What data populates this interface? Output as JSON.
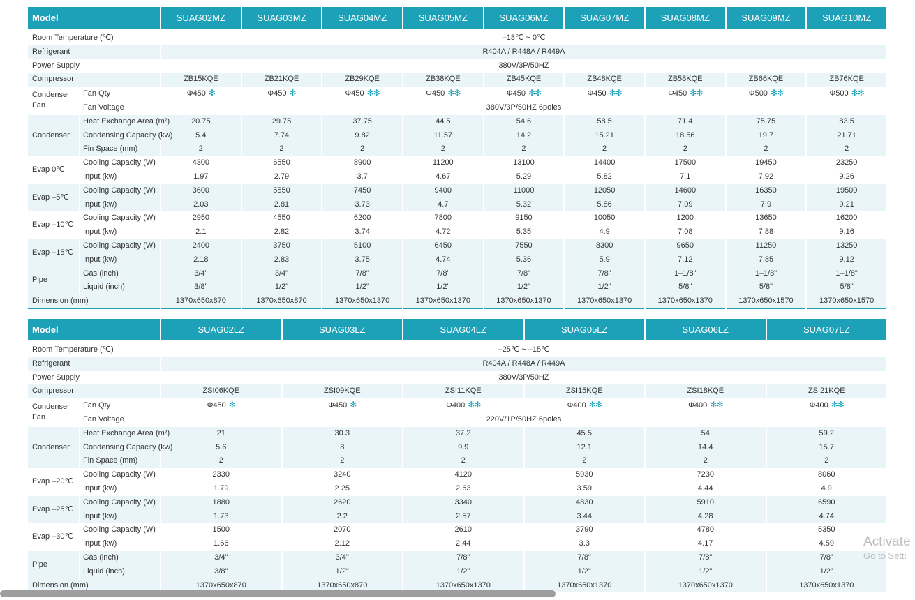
{
  "table1": {
    "model_label": "Model",
    "models": [
      "SUAG02MZ",
      "SUAG03MZ",
      "SUAG04MZ",
      "SUAG05MZ",
      "SUAG06MZ",
      "SUAG07MZ",
      "SUAG08MZ",
      "SUAG09MZ",
      "SUAG10MZ"
    ],
    "room_temp_label": "Room Temperature (℃)",
    "room_temp": "–18℃ ~ 0℃",
    "refrigerant_label": "Refrigerant",
    "refrigerant": "R404A / R448A / R449A",
    "power_label": "Power Supply",
    "power": "380V/3P/50HZ",
    "compressor_label": "Compressor",
    "compressors": [
      "ZB15KQE",
      "ZB21KQE",
      "ZB29KQE",
      "ZB38KQE",
      "ZB45KQE",
      "ZB48KQE",
      "ZB58KQE",
      "ZB66KQE",
      "ZB76KQE"
    ],
    "condenser_fan_label": "Condenser Fan",
    "fan_qty_label": "Fan Qty",
    "fan_qty": [
      "Φ450",
      "Φ450",
      "Φ450",
      "Φ450",
      "Φ450",
      "Φ450",
      "Φ450",
      "Φ500",
      "Φ500"
    ],
    "fan_icons": [
      "✻",
      "✻",
      "✻✻",
      "✻✻",
      "✻✻",
      "✻✻",
      "✻✻",
      "✻✻",
      "✻✻"
    ],
    "fan_voltage_label": "Fan Voltage",
    "fan_voltage": "380V/3P/50HZ  6poles",
    "condenser_label": "Condenser",
    "hex_area_label": "Heat Exchange Area (m²)",
    "hex_area": [
      "20.75",
      "29.75",
      "37.75",
      "44.5",
      "54.6",
      "58.5",
      "71.4",
      "75.75",
      "83.5"
    ],
    "cond_cap_label": "Condensing Capacity (kw)",
    "cond_cap": [
      "5.4",
      "7.74",
      "9.82",
      "11.57",
      "14.2",
      "15.21",
      "18.56",
      "19.7",
      "21.71"
    ],
    "fin_label": "Fin Space (mm)",
    "fin": [
      "2",
      "2",
      "2",
      "2",
      "2",
      "2",
      "2",
      "2",
      "2"
    ],
    "evaps": [
      {
        "label": "Evap 0℃",
        "cool_label": "Cooling Capacity (W)",
        "cool": [
          "4300",
          "6550",
          "8900",
          "11200",
          "13100",
          "14400",
          "17500",
          "19450",
          "23250"
        ],
        "input_label": "Input (kw)",
        "input": [
          "1.97",
          "2.79",
          "3.7",
          "4.67",
          "5.29",
          "5.82",
          "7.1",
          "7.92",
          "9.26"
        ]
      },
      {
        "label": "Evap –5℃",
        "cool_label": "Cooling Capacity (W)",
        "cool": [
          "3600",
          "5550",
          "7450",
          "9400",
          "11000",
          "12050",
          "14600",
          "16350",
          "19500"
        ],
        "input_label": "Input (kw)",
        "input": [
          "2.03",
          "2.81",
          "3.73",
          "4.7",
          "5.32",
          "5.86",
          "7.09",
          "7.9",
          "9.21"
        ]
      },
      {
        "label": "Evap –10℃",
        "cool_label": "Cooling Capacity (W)",
        "cool": [
          "2950",
          "4550",
          "6200",
          "7800",
          "9150",
          "10050",
          "1200",
          "13650",
          "16200"
        ],
        "input_label": "Input (kw)",
        "input": [
          "2.1",
          "2.82",
          "3.74",
          "4.72",
          "5.35",
          "4.9",
          "7.08",
          "7.88",
          "9.16"
        ]
      },
      {
        "label": "Evap –15℃",
        "cool_label": "Cooling Capacity (W)",
        "cool": [
          "2400",
          "3750",
          "5100",
          "6450",
          "7550",
          "8300",
          "9650",
          "11250",
          "13250"
        ],
        "input_label": "Input (kw)",
        "input": [
          "2.18",
          "2.83",
          "3.75",
          "4.74",
          "5.36",
          "5.9",
          "7.12",
          "7.85",
          "9.12"
        ]
      }
    ],
    "pipe_label": "Pipe",
    "gas_label": "Gas (inch)",
    "gas": [
      "3/4\"",
      "3/4\"",
      "7/8\"",
      "7/8\"",
      "7/8\"",
      "7/8\"",
      "1–1/8\"",
      "1–1/8\"",
      "1–1/8\""
    ],
    "liquid_label": "Liquid (inch)",
    "liquid": [
      "3/8\"",
      "1/2\"",
      "1/2\"",
      "1/2\"",
      "1/2\"",
      "1/2\"",
      "5/8\"",
      "5/8\"",
      "5/8\""
    ],
    "dimension_label": "Dimension (mm)",
    "dimension": [
      "1370x650x870",
      "1370x650x870",
      "1370x650x1370",
      "1370x650x1370",
      "1370x650x1370",
      "1370x650x1370",
      "1370x650x1370",
      "1370x650x1570",
      "1370x650x1570"
    ]
  },
  "table2": {
    "model_label": "Model",
    "models": [
      "SUAG02LZ",
      "SUAG03LZ",
      "SUAG04LZ",
      "SUAG05LZ",
      "SUAG06LZ",
      "SUAG07LZ"
    ],
    "room_temp_label": "Room Temperature (℃)",
    "room_temp": "–25℃ ~ –15℃",
    "refrigerant_label": "Refrigerant",
    "refrigerant": "R404A / R448A / R449A",
    "power_label": "Power Supply",
    "power": "380V/3P/50HZ",
    "compressor_label": "Compressor",
    "compressors": [
      "ZSI06KQE",
      "ZSI09KQE",
      "ZSI11KQE",
      "ZSI15KQE",
      "ZSI18KQE",
      "ZSI21KQE"
    ],
    "condenser_fan_label": "Condenser Fan",
    "fan_qty_label": "Fan Qty",
    "fan_qty": [
      "Φ450",
      "Φ450",
      "Φ400",
      "Φ400",
      "Φ400",
      "Φ400"
    ],
    "fan_icons": [
      "✻",
      "✻",
      "✻✻",
      "✻✻",
      "✻✻",
      "✻✻"
    ],
    "fan_voltage_label": "Fan Voltage",
    "fan_voltage": "220V/1P/50HZ  6poles",
    "condenser_label": "Condenser",
    "hex_area_label": "Heat Exchange Area (m²)",
    "hex_area": [
      "21",
      "30.3",
      "37.2",
      "45.5",
      "54",
      "59.2"
    ],
    "cond_cap_label": "Condensing Capacity (kw)",
    "cond_cap": [
      "5.6",
      "8",
      "9.9",
      "12.1",
      "14.4",
      "15.7"
    ],
    "fin_label": "Fin Space (mm)",
    "fin": [
      "2",
      "2",
      "2",
      "2",
      "2",
      "2"
    ],
    "evaps": [
      {
        "label": "Evap –20℃",
        "cool_label": "Cooling Capacity (W)",
        "cool": [
          "2330",
          "3240",
          "4120",
          "5930",
          "7230",
          "8060"
        ],
        "input_label": "Input (kw)",
        "input": [
          "1.79",
          "2.25",
          "2.63",
          "3.59",
          "4.44",
          "4.9"
        ]
      },
      {
        "label": "Evap –25℃",
        "cool_label": "Cooling Capacity (W)",
        "cool": [
          "1880",
          "2620",
          "3340",
          "4830",
          "5910",
          "6590"
        ],
        "input_label": "Input (kw)",
        "input": [
          "1.73",
          "2.2",
          "2.57",
          "3.44",
          "4.28",
          "4.74"
        ]
      },
      {
        "label": "Evap –30℃",
        "cool_label": "Cooling Capacity (W)",
        "cool": [
          "1500",
          "2070",
          "2610",
          "3790",
          "4780",
          "5350"
        ],
        "input_label": "Input (kw)",
        "input": [
          "1.66",
          "2.12",
          "2.44",
          "3.3",
          "4.17",
          "4.59"
        ]
      }
    ],
    "pipe_label": "Pipe",
    "gas_label": "Gas (inch)",
    "gas": [
      "3/4\"",
      "3/4\"",
      "7/8\"",
      "7/8\"",
      "7/8\"",
      "7/8\""
    ],
    "liquid_label": "Liquid (inch)",
    "liquid": [
      "3/8\"",
      "1/2\"",
      "1/2\"",
      "1/2\"",
      "1/2\"",
      "1/2\""
    ],
    "dimension_label": "Dimension (mm)",
    "dimension": [
      "1370x650x870",
      "1370x650x870",
      "1370x650x1370",
      "1370x650x1370",
      "1370x650x1370",
      "1370x650x1370"
    ]
  },
  "watermark": {
    "line1": "Activate",
    "line2": "Go to Setti"
  },
  "colors": {
    "accent": "#1da1b8",
    "stripe": "#e9f5f9"
  }
}
